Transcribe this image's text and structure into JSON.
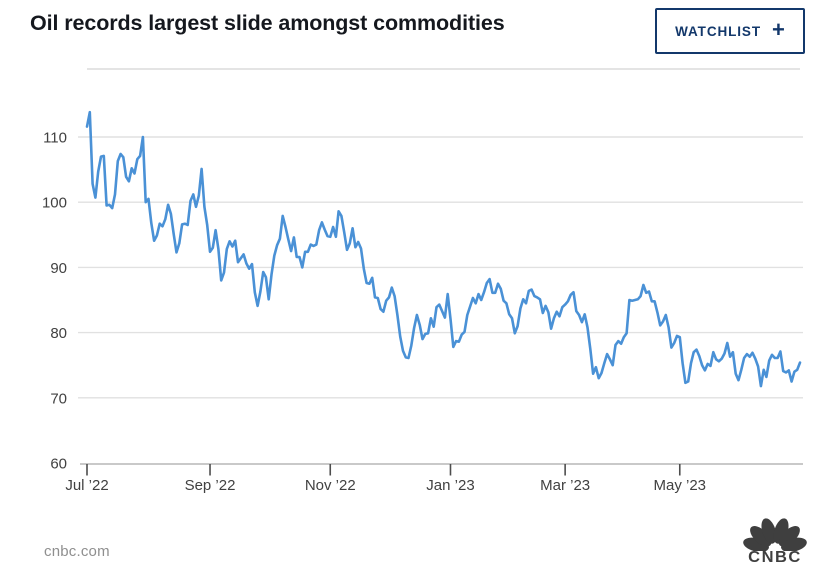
{
  "header": {
    "watchlist_label": "WATCHLIST",
    "watchlist_plus": "+"
  },
  "colors": {
    "line_blue": "#4a91d6",
    "accent_navy": "#13386b",
    "title_text": "#15181e",
    "axis_text": "#414141",
    "gridline": "#e1e1e1",
    "logo_gray": "#3f3f3f"
  },
  "footer": {
    "source": "cnbc.com",
    "logo_text": "CNBC"
  },
  "chart_data": {
    "type": "line",
    "title": "Oil records largest slide amongst commodities",
    "x_tick_labels": [
      "Jul ’22",
      "Sep ’22",
      "Nov ’22",
      "Jan ’23",
      "Mar ’23",
      "May ’23"
    ],
    "x_tick_indices": [
      0,
      44,
      87,
      130,
      171,
      212
    ],
    "x_range": "Daily, Jul 2022 – Jun 2023",
    "y_ticks": [
      110,
      100,
      90,
      80,
      70,
      60
    ],
    "ylim": [
      60,
      115
    ],
    "grid": "horizontal",
    "legend": "none",
    "line_color": "#4a91d6",
    "values": [
      111.6,
      113.8,
      102.8,
      100.7,
      104.7,
      107.0,
      107.1,
      99.5,
      99.6,
      99.1,
      101.2,
      106.3,
      107.4,
      106.9,
      103.9,
      103.2,
      105.2,
      104.4,
      106.6,
      107.1,
      110.0,
      100.0,
      100.5,
      96.8,
      94.1,
      94.9,
      96.7,
      96.3,
      97.4,
      99.6,
      98.2,
      95.1,
      92.3,
      93.7,
      96.6,
      96.7,
      96.5,
      100.2,
      101.2,
      99.3,
      101.0,
      105.1,
      99.3,
      96.5,
      92.4,
      93.0,
      95.7,
      92.8,
      88.0,
      89.2,
      92.8,
      94.0,
      93.2,
      94.1,
      90.8,
      91.4,
      92.0,
      90.6,
      89.8,
      90.5,
      86.2,
      84.1,
      86.3,
      89.3,
      88.5,
      85.1,
      88.9,
      91.8,
      93.4,
      94.4,
      97.9,
      96.2,
      94.3,
      92.5,
      94.6,
      91.6,
      91.6,
      90.0,
      92.4,
      92.4,
      93.5,
      93.3,
      93.5,
      95.7,
      96.9,
      95.8,
      94.8,
      94.7,
      96.2,
      94.7,
      98.6,
      97.9,
      95.4,
      92.7,
      93.7,
      96.0,
      93.1,
      93.9,
      92.9,
      89.8,
      87.6,
      87.5,
      88.4,
      85.4,
      85.3,
      83.6,
      83.2,
      84.9,
      85.4,
      86.9,
      85.6,
      82.7,
      79.4,
      77.2,
      76.2,
      76.1,
      78.0,
      80.7,
      82.7,
      81.2,
      79.0,
      79.8,
      79.9,
      82.2,
      80.9,
      83.9,
      84.3,
      83.3,
      82.3,
      85.9,
      82.1,
      77.8,
      78.7,
      78.6,
      79.7,
      80.1,
      82.7,
      84.0,
      85.3,
      84.5,
      85.9,
      85.0,
      86.2,
      87.6,
      88.2,
      86.1,
      86.1,
      87.5,
      86.7,
      84.9,
      84.5,
      82.8,
      82.2,
      79.9,
      81.0,
      83.7,
      85.1,
      84.5,
      86.4,
      86.6,
      85.6,
      85.4,
      85.1,
      83.0,
      84.1,
      83.1,
      80.6,
      82.2,
      83.2,
      82.5,
      83.9,
      84.3,
      84.8,
      85.8,
      86.2,
      83.3,
      82.7,
      81.6,
      82.8,
      80.8,
      77.5,
      73.7,
      74.7,
      73.0,
      73.8,
      75.3,
      76.7,
      75.9,
      75.0,
      78.1,
      78.7,
      78.3,
      79.3,
      79.9,
      85.0,
      84.9,
      85.0,
      85.1,
      85.6,
      87.3,
      86.1,
      86.3,
      84.8,
      84.8,
      83.1,
      81.1,
      81.7,
      82.7,
      80.8,
      77.7,
      78.4,
      79.5,
      79.3,
      75.3,
      72.3,
      72.5,
      75.3,
      77.0,
      77.4,
      76.4,
      75.0,
      74.2,
      75.2,
      74.9,
      77.0,
      75.9,
      75.6,
      76.0,
      76.8,
      78.4,
      76.3,
      77.0,
      73.7,
      72.7,
      74.3,
      76.1,
      76.7,
      76.3,
      76.9,
      76.0,
      74.8,
      71.8,
      74.3,
      73.2,
      75.7,
      76.6,
      76.1,
      76.1,
      77.1,
      74.1,
      73.9,
      74.2,
      72.5,
      74.0,
      74.3,
      75.4
    ]
  }
}
